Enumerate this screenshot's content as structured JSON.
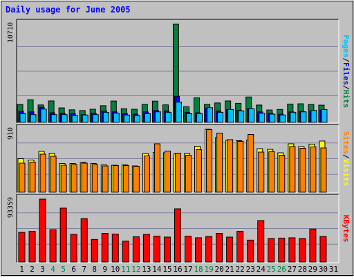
{
  "title": "Daily usage for June 2005",
  "colors": {
    "background": "#c0c0c0",
    "hits": "#008040",
    "files": "#0000ff",
    "pages": "#00c0ff",
    "visits": "#ffff00",
    "sites": "#ff8000",
    "kbytes": "#ff0000",
    "title": "#0000ff",
    "grid": "#8080a0"
  },
  "weekend_color": "#008040",
  "chart_data": {
    "type": "bar",
    "title": "Daily usage for June 2005",
    "categories": [
      "1",
      "2",
      "3",
      "4",
      "5",
      "6",
      "7",
      "8",
      "9",
      "10",
      "11",
      "12",
      "13",
      "14",
      "15",
      "16",
      "17",
      "18",
      "19",
      "20",
      "21",
      "22",
      "23",
      "24",
      "25",
      "26",
      "27",
      "28",
      "29",
      "30",
      "31"
    ],
    "weekend_days": [
      "4",
      "5",
      "11",
      "12",
      "18",
      "19",
      "25",
      "26"
    ],
    "grid": true,
    "panels": [
      {
        "id": "hits-files-pages",
        "max_label": "10710",
        "ylim": [
          0,
          10710
        ],
        "label_parts": [
          "Pages",
          "Files",
          "Hits"
        ],
        "series": [
          {
            "name": "Hits",
            "values": [
              1950,
              2470,
              1900,
              2340,
              1580,
              1370,
              1290,
              1430,
              1820,
              2330,
              1490,
              1430,
              1960,
              2320,
              1910,
              10710,
              1700,
              2680,
              1960,
              2120,
              2340,
              2080,
              2770,
              1890,
              1350,
              1410,
              2000,
              2030,
              1950,
              1880,
              0
            ]
          },
          {
            "name": "Files",
            "values": [
              1200,
              1150,
              1650,
              1050,
              1000,
              950,
              850,
              1000,
              1250,
              1150,
              950,
              900,
              1150,
              1300,
              1250,
              2850,
              1100,
              1050,
              1550,
              1250,
              1400,
              1300,
              1500,
              1150,
              1000,
              900,
              1150,
              1200,
              1250,
              1350,
              0
            ]
          },
          {
            "name": "Pages",
            "values": [
              950,
              850,
              1450,
              850,
              850,
              750,
              800,
              850,
              1100,
              1000,
              800,
              750,
              950,
              1150,
              1100,
              2200,
              950,
              950,
              1600,
              1100,
              1400,
              1250,
              1500,
              1000,
              900,
              800,
              1100,
              1150,
              1300,
              1400,
              0
            ]
          }
        ]
      },
      {
        "id": "visits-sites",
        "max_label": "910",
        "ylim": [
          0,
          910
        ],
        "label_parts": [
          "Sites",
          "Visits"
        ],
        "series": [
          {
            "name": "Visits",
            "values": [
              485,
              465,
              590,
              560,
              415,
              415,
              430,
              415,
              395,
              390,
              395,
              380,
              560,
              575,
              570,
              555,
              560,
              665,
              910,
              790,
              750,
              745,
              755,
              630,
              620,
              570,
              700,
              660,
              695,
              740,
              0
            ]
          },
          {
            "name": "Sites",
            "values": [
              420,
              435,
              550,
              520,
              390,
              400,
              420,
              400,
              380,
              385,
              385,
              375,
              525,
              700,
              595,
              565,
              535,
              615,
              905,
              855,
              760,
              735,
              835,
              580,
              585,
              535,
              660,
              635,
              655,
              640,
              0
            ]
          }
        ]
      },
      {
        "id": "kbytes",
        "max_label": "93359",
        "ylim": [
          0,
          93359
        ],
        "label_parts": [
          "KBytes"
        ],
        "series": [
          {
            "name": "KBytes",
            "values": [
              44000,
              45500,
              93359,
              48000,
              80000,
              41000,
              64500,
              33500,
              42500,
              41500,
              31000,
              37500,
              41000,
              38500,
              37000,
              79000,
              38500,
              36000,
              38000,
              42500,
              37000,
              45500,
              32500,
              61500,
              35000,
              35500,
              36000,
              35000,
              49000,
              38000,
              0
            ]
          }
        ]
      }
    ]
  }
}
